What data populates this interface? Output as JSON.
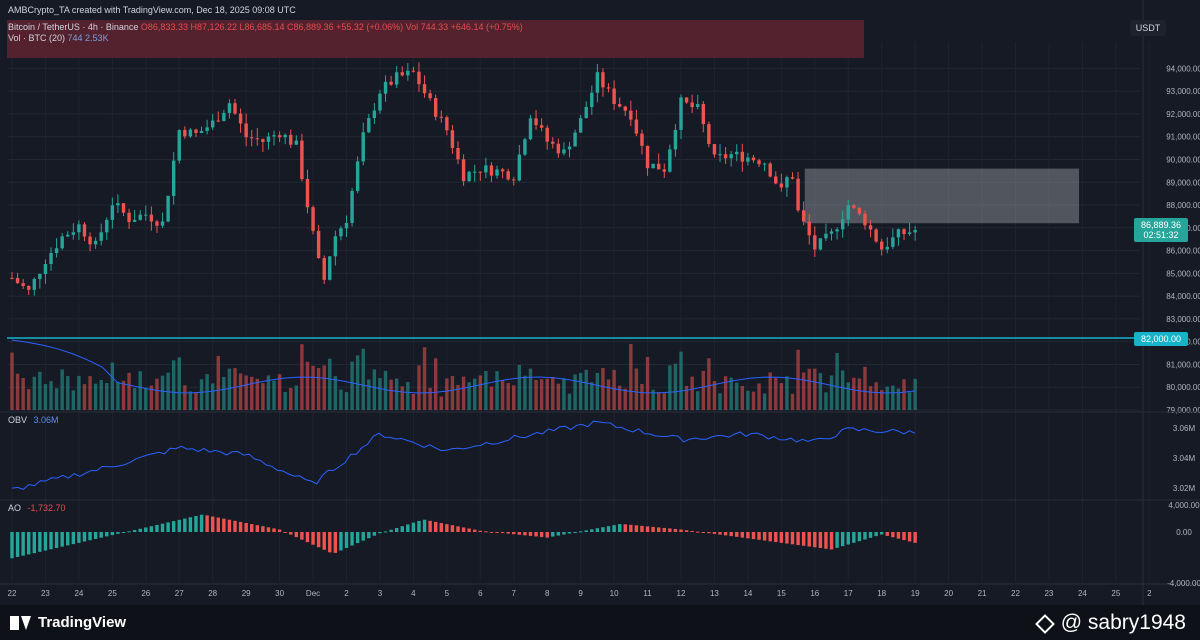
{
  "header": {
    "title": "AMBCrypto_TA created with TradingView.com, Dec 18, 2025 09:08 UTC"
  },
  "legend": {
    "symbol": "Bitcoin / TetherUS · 4h · Binance",
    "ohlc": "O86,833.33 H87,126.22 L86,685.14 C86,889.36 +55.32 (+0.06%) Vol 744.33 +646.14 (+0.75%)",
    "volume_label": "Vol · BTC (20)",
    "volume_value": "744 2.53K"
  },
  "price_axis": {
    "currency": "USDT",
    "ticks": [
      "94,000.00",
      "93,000.00",
      "92,000.00",
      "91,000.00",
      "90,000.00",
      "89,000.00",
      "88,000.00",
      "87,000.00",
      "86,000.00",
      "85,000.00",
      "84,000.00",
      "83,000.00",
      "82,000.00",
      "81,000.00",
      "80,000.00",
      "79,000.00"
    ],
    "last_price": "86,889.36",
    "countdown": "02:51:32",
    "level_label": "82,000.00"
  },
  "obv": {
    "name": "OBV",
    "value": "3.06M",
    "ticks": [
      "3.06M",
      "3.04M",
      "3.02M"
    ]
  },
  "ao": {
    "name": "AO",
    "value": "-1,732.70",
    "ticks": [
      "4,000.00",
      "0.00",
      "-4,000.00"
    ]
  },
  "time_axis": {
    "labels": [
      "22",
      "23",
      "24",
      "25",
      "26",
      "27",
      "28",
      "29",
      "30",
      "Dec",
      "2",
      "3",
      "4",
      "5",
      "6",
      "7",
      "8",
      "9",
      "10",
      "11",
      "12",
      "13",
      "14",
      "15",
      "16",
      "17",
      "18",
      "19",
      "20",
      "21",
      "22",
      "23",
      "24",
      "25",
      "2"
    ]
  },
  "footer": {
    "brand": "TradingView",
    "watermark": "@ sabry1948"
  },
  "colors": {
    "bg": "#161a25",
    "up": "#26a69a",
    "down": "#ef5350",
    "line": "#2962ff",
    "level": "#16b3c9"
  },
  "chart_data": {
    "type": "candlestick",
    "symbol": "Bitcoin / TetherUS",
    "interval": "4h",
    "exchange": "Binance",
    "x_range": [
      "Nov 22",
      "Dec 26"
    ],
    "ylim": [
      79000,
      94500
    ],
    "horizontal_level": 82000,
    "resistance_zone": [
      94000,
      95000
    ],
    "supply_zone": [
      87200,
      89600
    ],
    "close_anchors": [
      {
        "day": 0.0,
        "price": 84800
      },
      {
        "day": 0.5,
        "price": 84200
      },
      {
        "day": 1.0,
        "price": 85600
      },
      {
        "day": 1.5,
        "price": 86600
      },
      {
        "day": 2.0,
        "price": 87100
      },
      {
        "day": 2.5,
        "price": 86200
      },
      {
        "day": 3.0,
        "price": 88100
      },
      {
        "day": 3.5,
        "price": 87400
      },
      {
        "day": 4.0,
        "price": 87600
      },
      {
        "day": 4.5,
        "price": 87200
      },
      {
        "day": 5.0,
        "price": 91300
      },
      {
        "day": 5.5,
        "price": 91100
      },
      {
        "day": 6.0,
        "price": 91600
      },
      {
        "day": 6.5,
        "price": 92500
      },
      {
        "day": 7.0,
        "price": 91000
      },
      {
        "day": 7.5,
        "price": 90800
      },
      {
        "day": 8.0,
        "price": 91200
      },
      {
        "day": 8.5,
        "price": 90600
      },
      {
        "day": 9.0,
        "price": 86700
      },
      {
        "day": 9.3,
        "price": 84500
      },
      {
        "day": 9.6,
        "price": 86500
      },
      {
        "day": 10.0,
        "price": 87400
      },
      {
        "day": 10.5,
        "price": 91000
      },
      {
        "day": 11.0,
        "price": 93000
      },
      {
        "day": 11.5,
        "price": 93600
      },
      {
        "day": 12.0,
        "price": 93800
      },
      {
        "day": 12.5,
        "price": 92500
      },
      {
        "day": 13.0,
        "price": 91300
      },
      {
        "day": 13.5,
        "price": 89300
      },
      {
        "day": 14.0,
        "price": 89600
      },
      {
        "day": 14.5,
        "price": 89500
      },
      {
        "day": 15.0,
        "price": 89300
      },
      {
        "day": 15.5,
        "price": 92000
      },
      {
        "day": 16.0,
        "price": 90800
      },
      {
        "day": 16.5,
        "price": 90300
      },
      {
        "day": 17.0,
        "price": 91700
      },
      {
        "day": 17.5,
        "price": 93600
      },
      {
        "day": 18.0,
        "price": 92600
      },
      {
        "day": 18.5,
        "price": 92000
      },
      {
        "day": 19.0,
        "price": 89800
      },
      {
        "day": 19.5,
        "price": 89600
      },
      {
        "day": 20.0,
        "price": 92500
      },
      {
        "day": 20.5,
        "price": 92200
      },
      {
        "day": 21.0,
        "price": 90000
      },
      {
        "day": 21.5,
        "price": 90200
      },
      {
        "day": 22.0,
        "price": 90100
      },
      {
        "day": 22.5,
        "price": 89900
      },
      {
        "day": 23.0,
        "price": 88600
      },
      {
        "day": 23.3,
        "price": 89600
      },
      {
        "day": 23.5,
        "price": 87700
      },
      {
        "day": 24.0,
        "price": 86100
      },
      {
        "day": 24.5,
        "price": 86700
      },
      {
        "day": 25.0,
        "price": 88000
      },
      {
        "day": 25.5,
        "price": 87300
      },
      {
        "day": 26.0,
        "price": 86100
      },
      {
        "day": 26.5,
        "price": 86700
      },
      {
        "day": 27.0,
        "price": 86900
      }
    ],
    "obv_anchors": [
      {
        "day": 0,
        "value": 3.018
      },
      {
        "day": 3,
        "value": 3.035
      },
      {
        "day": 5,
        "value": 3.048
      },
      {
        "day": 7,
        "value": 3.043
      },
      {
        "day": 9,
        "value": 3.022
      },
      {
        "day": 11,
        "value": 3.058
      },
      {
        "day": 13,
        "value": 3.046
      },
      {
        "day": 15,
        "value": 3.055
      },
      {
        "day": 17.5,
        "value": 3.066
      },
      {
        "day": 20,
        "value": 3.054
      },
      {
        "day": 22,
        "value": 3.058
      },
      {
        "day": 24,
        "value": 3.052
      },
      {
        "day": 25,
        "value": 3.061
      },
      {
        "day": 27,
        "value": 3.059
      }
    ],
    "ao_anchors": [
      {
        "day": 0,
        "value": -4200
      },
      {
        "day": 3,
        "value": -500
      },
      {
        "day": 5.7,
        "value": 2800
      },
      {
        "day": 8,
        "value": 400
      },
      {
        "day": 9.6,
        "value": -3500
      },
      {
        "day": 11,
        "value": -200
      },
      {
        "day": 12.3,
        "value": 2000
      },
      {
        "day": 14,
        "value": 200
      },
      {
        "day": 16,
        "value": -900
      },
      {
        "day": 18.2,
        "value": 1300
      },
      {
        "day": 20,
        "value": 400
      },
      {
        "day": 21,
        "value": -300
      },
      {
        "day": 24.5,
        "value": -2800
      },
      {
        "day": 26,
        "value": -400
      },
      {
        "day": 27,
        "value": -1733
      }
    ]
  }
}
